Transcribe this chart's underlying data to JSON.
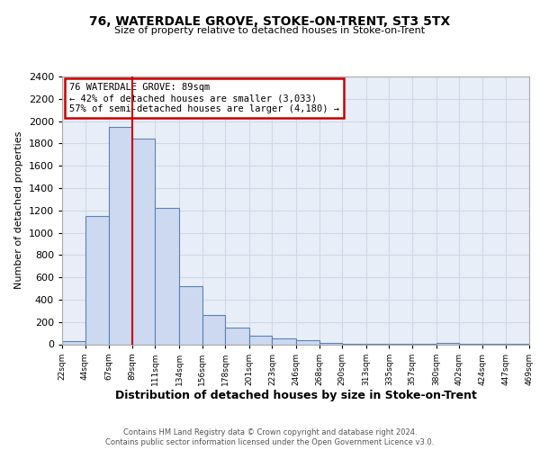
{
  "title": "76, WATERDALE GROVE, STOKE-ON-TRENT, ST3 5TX",
  "subtitle": "Size of property relative to detached houses in Stoke-on-Trent",
  "xlabel": "Distribution of detached houses by size in Stoke-on-Trent",
  "ylabel": "Number of detached properties",
  "bin_edges": [
    22,
    44,
    67,
    89,
    111,
    134,
    156,
    178,
    201,
    223,
    246,
    268,
    290,
    313,
    335,
    357,
    380,
    402,
    424,
    447,
    469
  ],
  "bin_heights": [
    25,
    1150,
    1950,
    1840,
    1220,
    520,
    265,
    150,
    80,
    50,
    40,
    10,
    5,
    5,
    3,
    2,
    10,
    2,
    2,
    2
  ],
  "property_line_x": 89,
  "bar_facecolor": "#ccd9f0",
  "bar_edgecolor": "#5b82b5",
  "line_color": "#cc0000",
  "annotation_box_edgecolor": "#cc0000",
  "annotation_lines": [
    "76 WATERDALE GROVE: 89sqm",
    "← 42% of detached houses are smaller (3,033)",
    "57% of semi-detached houses are larger (4,180) →"
  ],
  "ylim": [
    0,
    2400
  ],
  "yticks": [
    0,
    200,
    400,
    600,
    800,
    1000,
    1200,
    1400,
    1600,
    1800,
    2000,
    2200,
    2400
  ],
  "xtick_labels": [
    "22sqm",
    "44sqm",
    "67sqm",
    "89sqm",
    "111sqm",
    "134sqm",
    "156sqm",
    "178sqm",
    "201sqm",
    "223sqm",
    "246sqm",
    "268sqm",
    "290sqm",
    "313sqm",
    "335sqm",
    "357sqm",
    "380sqm",
    "402sqm",
    "424sqm",
    "447sqm",
    "469sqm"
  ],
  "grid_color": "#d0d8e8",
  "bg_color": "#e8eef8",
  "footer_line1": "Contains HM Land Registry data © Crown copyright and database right 2024.",
  "footer_line2": "Contains public sector information licensed under the Open Government Licence v3.0."
}
